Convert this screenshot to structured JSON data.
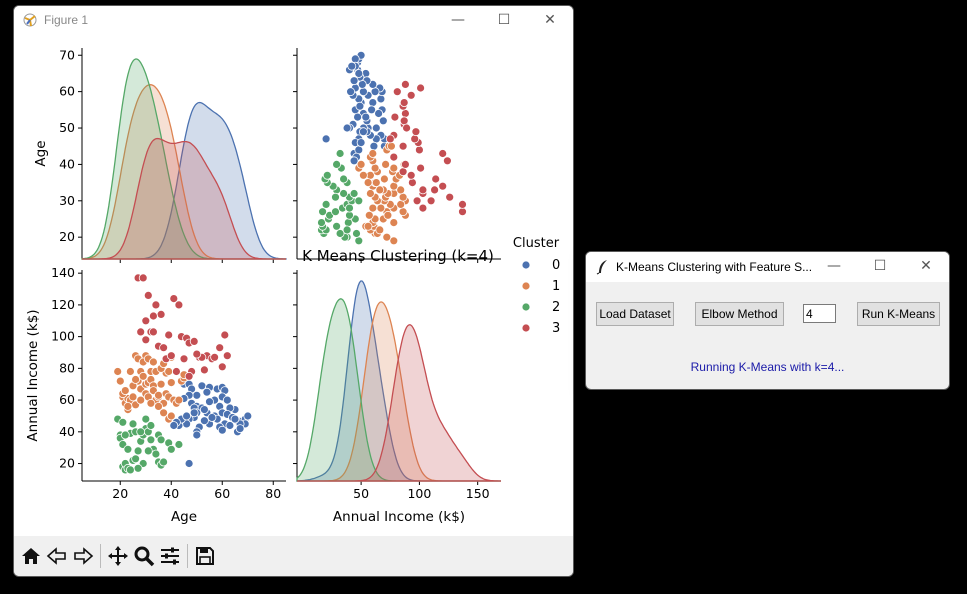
{
  "figure_window": {
    "title": "Figure 1",
    "controls": {
      "minimize": "—",
      "maximize": "☐",
      "close": "✕"
    },
    "toolbar": [
      "home-icon",
      "back-icon",
      "forward-icon",
      "pan-icon",
      "zoom-icon",
      "configure-icon",
      "save-icon"
    ]
  },
  "kmeans_window": {
    "title": "K-Means Clustering with Feature S...",
    "buttons": {
      "load": "Load Dataset",
      "elbow": "Elbow Method",
      "run": "Run K-Means"
    },
    "k_value": "4",
    "status": "Running K-Means with k=4..."
  },
  "colors": {
    "c0": "#4c72b0",
    "c1": "#dd8452",
    "c2": "#55a868",
    "c3": "#c44e52"
  },
  "chart_data": {
    "type": "scatter",
    "title": "K Means Clustering (k=4)",
    "variables": [
      "Age",
      "Annual Income (k$)"
    ],
    "x_ranges": {
      "Age": [
        5,
        85
      ],
      "Annual Income (k$)": [
        -5,
        170
      ]
    },
    "y_ranges": {
      "Age": [
        14,
        72
      ],
      "Annual Income (k$)": [
        9,
        142
      ]
    },
    "ticks": {
      "Age_x": [
        20,
        40,
        60,
        80
      ],
      "Age_y": [
        20,
        30,
        40,
        50,
        60,
        70
      ],
      "Income_x": [
        50,
        100,
        150
      ],
      "Income_y": [
        20,
        40,
        60,
        80,
        100,
        120,
        140
      ]
    },
    "labels": {
      "age": "Age",
      "income": "Annual Income (k$)"
    },
    "legend": {
      "title": "Cluster",
      "entries": [
        "0",
        "1",
        "2",
        "3"
      ],
      "placement": "right"
    },
    "clusters": [
      {
        "name": "0",
        "points": [
          [
            45,
            70
          ],
          [
            47,
            70
          ],
          [
            52,
            69
          ],
          [
            55,
            68
          ],
          [
            48,
            67
          ],
          [
            58,
            67
          ],
          [
            60,
            68
          ],
          [
            61,
            66
          ],
          [
            60,
            62
          ],
          [
            62,
            60
          ],
          [
            57,
            60
          ],
          [
            55,
            59
          ],
          [
            54,
            65
          ],
          [
            50,
            63
          ],
          [
            47,
            63
          ],
          [
            45,
            61
          ],
          [
            48,
            58
          ],
          [
            50,
            56
          ],
          [
            52,
            55
          ],
          [
            59,
            56
          ],
          [
            65,
            54
          ],
          [
            63,
            55
          ],
          [
            49,
            55
          ],
          [
            50,
            52
          ],
          [
            54,
            52
          ],
          [
            60,
            52
          ],
          [
            62,
            51
          ],
          [
            64,
            49
          ],
          [
            57,
            50
          ],
          [
            58,
            48
          ],
          [
            66,
            47
          ],
          [
            68,
            47
          ],
          [
            69,
            48
          ],
          [
            70,
            50
          ],
          [
            69,
            45
          ],
          [
            67,
            45
          ],
          [
            61,
            45
          ],
          [
            59,
            43
          ],
          [
            55,
            45
          ],
          [
            53,
            47
          ],
          [
            51,
            43
          ],
          [
            49,
            49
          ],
          [
            47,
            48
          ],
          [
            46,
            45
          ],
          [
            43,
            44
          ],
          [
            44,
            48
          ],
          [
            66,
            40
          ],
          [
            67,
            42
          ],
          [
            60,
            41
          ],
          [
            50,
            40
          ],
          [
            42,
            46
          ],
          [
            41,
            44
          ],
          [
            49,
            52
          ],
          [
            46,
            50
          ],
          [
            50,
            38
          ],
          [
            56,
            49
          ],
          [
            63,
            44
          ],
          [
            65,
            48
          ],
          [
            53,
            54
          ],
          [
            47,
            20
          ]
        ]
      },
      {
        "name": "1",
        "points": [
          [
            19,
            78
          ],
          [
            20,
            72
          ],
          [
            21,
            62
          ],
          [
            22,
            58
          ],
          [
            23,
            61
          ],
          [
            23,
            54
          ],
          [
            24,
            60
          ],
          [
            25,
            62
          ],
          [
            26,
            57
          ],
          [
            27,
            72
          ],
          [
            28,
            67
          ],
          [
            28,
            78
          ],
          [
            29,
            75
          ],
          [
            30,
            88
          ],
          [
            30,
            70
          ],
          [
            31,
            71
          ],
          [
            32,
            78
          ],
          [
            32,
            73
          ],
          [
            33,
            69
          ],
          [
            33,
            66
          ],
          [
            34,
            60
          ],
          [
            35,
            62
          ],
          [
            35,
            63
          ],
          [
            36,
            70
          ],
          [
            37,
            58
          ],
          [
            38,
            64
          ],
          [
            38,
            77
          ],
          [
            39,
            62
          ],
          [
            40,
            71
          ],
          [
            41,
            60
          ],
          [
            42,
            58
          ],
          [
            43,
            60
          ],
          [
            24,
            78
          ],
          [
            26,
            88
          ],
          [
            27,
            86
          ],
          [
            29,
            84
          ],
          [
            31,
            86
          ],
          [
            33,
            84
          ],
          [
            34,
            78
          ],
          [
            36,
            80
          ],
          [
            37,
            83
          ],
          [
            39,
            78
          ],
          [
            40,
            87
          ],
          [
            42,
            78
          ],
          [
            44,
            72
          ],
          [
            45,
            74
          ],
          [
            45,
            76
          ],
          [
            21,
            64
          ],
          [
            22,
            66
          ],
          [
            25,
            69
          ],
          [
            26,
            73
          ],
          [
            30,
            64
          ],
          [
            31,
            62
          ],
          [
            35,
            56
          ],
          [
            37,
            52
          ],
          [
            39,
            48
          ],
          [
            40,
            50
          ],
          [
            32,
            58
          ],
          [
            28,
            60
          ],
          [
            23,
            56
          ]
        ]
      },
      {
        "name": "2",
        "points": [
          [
            19,
            48
          ],
          [
            20,
            38
          ],
          [
            20,
            36
          ],
          [
            21,
            32
          ],
          [
            21,
            18
          ],
          [
            22,
            16
          ],
          [
            22,
            20
          ],
          [
            23,
            29
          ],
          [
            23,
            17
          ],
          [
            24,
            16
          ],
          [
            25,
            22
          ],
          [
            26,
            23
          ],
          [
            27,
            28
          ],
          [
            28,
            34
          ],
          [
            29,
            38
          ],
          [
            30,
            42
          ],
          [
            31,
            40
          ],
          [
            32,
            35
          ],
          [
            33,
            29
          ],
          [
            34,
            26
          ],
          [
            35,
            21
          ],
          [
            36,
            19
          ],
          [
            37,
            21
          ],
          [
            31,
            28
          ],
          [
            29,
            20
          ],
          [
            27,
            17
          ],
          [
            25,
            45
          ],
          [
            24,
            39
          ],
          [
            22,
            38
          ],
          [
            21,
            46
          ],
          [
            26,
            40
          ],
          [
            28,
            40
          ],
          [
            30,
            48
          ],
          [
            32,
            44
          ],
          [
            35,
            38
          ],
          [
            36,
            35
          ],
          [
            39,
            33
          ],
          [
            40,
            29
          ],
          [
            43,
            32
          ]
        ]
      },
      {
        "name": "3",
        "points": [
          [
            27,
            137
          ],
          [
            29,
            137
          ],
          [
            31,
            126
          ],
          [
            34,
            120
          ],
          [
            36,
            114
          ],
          [
            39,
            101
          ],
          [
            41,
            124
          ],
          [
            43,
            120
          ],
          [
            44,
            100
          ],
          [
            46,
            99
          ],
          [
            47,
            96
          ],
          [
            49,
            97
          ],
          [
            51,
            87
          ],
          [
            53,
            79
          ],
          [
            54,
            88
          ],
          [
            56,
            86
          ],
          [
            57,
            87
          ],
          [
            59,
            93
          ],
          [
            60,
            81
          ],
          [
            61,
            101
          ],
          [
            62,
            88
          ],
          [
            28,
            103
          ],
          [
            30,
            98
          ],
          [
            32,
            103
          ],
          [
            33,
            103
          ],
          [
            35,
            94
          ],
          [
            37,
            93
          ],
          [
            38,
            86
          ],
          [
            40,
            88
          ],
          [
            42,
            78
          ],
          [
            45,
            86
          ],
          [
            48,
            78
          ],
          [
            30,
            110
          ],
          [
            33,
            113
          ],
          [
            47,
            75
          ],
          [
            52,
            87
          ],
          [
            50,
            89
          ]
        ]
      }
    ]
  }
}
